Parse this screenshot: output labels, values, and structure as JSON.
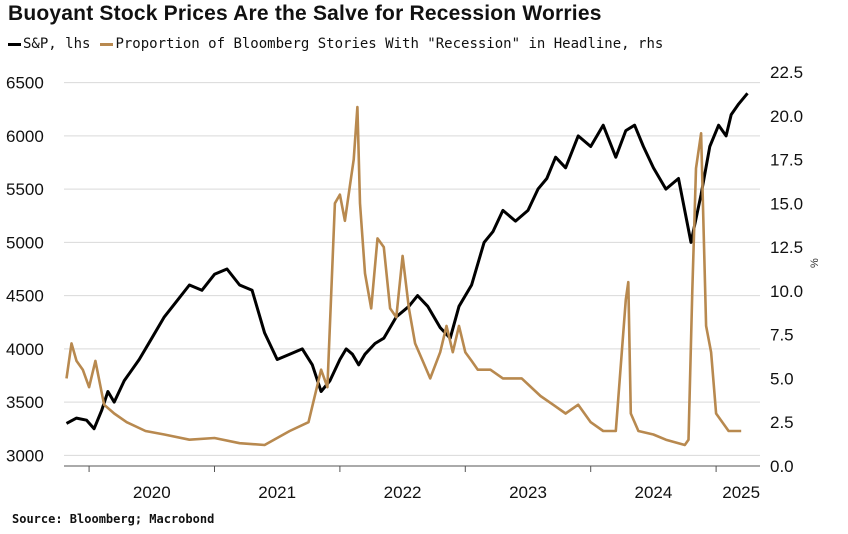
{
  "title": "Buoyant Stock Prices Are the Salve for Recession Worries",
  "source": "Source: Bloomberg; Macrobond",
  "colors": {
    "sp": "#000000",
    "recession": "#b8894f",
    "grid": "#d9d9d9"
  },
  "chart_data": {
    "type": "line",
    "x_tick_labels": [
      "2020",
      "2021",
      "2022",
      "2023",
      "2024",
      "2025"
    ],
    "x_tick_years": [
      2020,
      2021,
      2022,
      2023,
      2024,
      2025
    ],
    "xlim": [
      2019.8,
      2025.35
    ],
    "y_left": {
      "ylim": [
        2900,
        6600
      ],
      "ticks": [
        3000,
        3500,
        4000,
        4500,
        5000,
        5500,
        6000,
        6500
      ],
      "tick_labels": [
        "3000",
        "3500",
        "4000",
        "4500",
        "5000",
        "5500",
        "6000",
        "6500"
      ]
    },
    "y_right": {
      "ylim": [
        0,
        22.5
      ],
      "ticks": [
        0,
        2.5,
        5,
        7.5,
        10,
        12.5,
        15,
        17.5,
        20,
        22.5
      ],
      "tick_labels": [
        "0.0",
        "2.5",
        "5.0",
        "7.5",
        "10.0",
        "12.5",
        "15.0",
        "17.5",
        "20.0",
        "22.5"
      ]
    },
    "series": [
      {
        "name": "S&P, lhs",
        "axis": "left",
        "color": "#000000",
        "x": [
          2019.82,
          2019.9,
          2019.98,
          2020.04,
          2020.1,
          2020.15,
          2020.2,
          2020.28,
          2020.4,
          2020.5,
          2020.6,
          2020.7,
          2020.8,
          2020.9,
          2021.0,
          2021.1,
          2021.2,
          2021.3,
          2021.4,
          2021.5,
          2021.6,
          2021.7,
          2021.78,
          2021.85,
          2021.92,
          2022.0,
          2022.05,
          2022.1,
          2022.15,
          2022.2,
          2022.28,
          2022.35,
          2022.45,
          2022.55,
          2022.62,
          2022.7,
          2022.8,
          2022.88,
          2022.95,
          2023.05,
          2023.15,
          2023.22,
          2023.3,
          2023.4,
          2023.5,
          2023.58,
          2023.65,
          2023.72,
          2023.8,
          2023.9,
          2024.0,
          2024.1,
          2024.2,
          2024.28,
          2024.35,
          2024.42,
          2024.5,
          2024.6,
          2024.7,
          2024.8,
          2024.88,
          2024.95,
          2025.02,
          2025.08,
          2025.12,
          2025.18,
          2025.25
        ],
        "values": [
          3300,
          3350,
          3330,
          3250,
          3420,
          3600,
          3500,
          3700,
          3900,
          4100,
          4300,
          4450,
          4600,
          4550,
          4700,
          4750,
          4600,
          4550,
          4150,
          3900,
          3950,
          4000,
          3850,
          3600,
          3700,
          3900,
          4000,
          3950,
          3850,
          3950,
          4050,
          4100,
          4300,
          4400,
          4500,
          4400,
          4200,
          4100,
          4400,
          4600,
          5000,
          5100,
          5300,
          5200,
          5300,
          5500,
          5600,
          5800,
          5700,
          6000,
          5900,
          6100,
          5800,
          6050,
          6100,
          5900,
          5700,
          5500,
          5600,
          5000,
          5450,
          5900,
          6100,
          6000,
          6200,
          6300,
          6400
        ]
      },
      {
        "name": "Proportion of Bloomberg Stories With \"Recession\" in Headline, rhs",
        "axis": "right",
        "color": "#b8894f",
        "x": [
          2019.82,
          2019.86,
          2019.9,
          2019.95,
          2020.0,
          2020.05,
          2020.12,
          2020.2,
          2020.3,
          2020.45,
          2020.6,
          2020.8,
          2021.0,
          2021.2,
          2021.4,
          2021.6,
          2021.75,
          2021.85,
          2021.9,
          2021.96,
          2022.0,
          2022.04,
          2022.08,
          2022.11,
          2022.14,
          2022.16,
          2022.2,
          2022.25,
          2022.3,
          2022.35,
          2022.4,
          2022.45,
          2022.5,
          2022.55,
          2022.6,
          2022.66,
          2022.72,
          2022.8,
          2022.85,
          2022.9,
          2022.95,
          2023.0,
          2023.05,
          2023.1,
          2023.2,
          2023.3,
          2023.45,
          2023.6,
          2023.7,
          2023.8,
          2023.9,
          2024.0,
          2024.1,
          2024.2,
          2024.28,
          2024.3,
          2024.32,
          2024.38,
          2024.5,
          2024.6,
          2024.7,
          2024.75,
          2024.78,
          2024.81,
          2024.84,
          2024.88,
          2024.92,
          2024.96,
          2025.0,
          2025.1,
          2025.2
        ],
        "values": [
          5.0,
          7.0,
          6.0,
          5.5,
          4.5,
          6.0,
          3.5,
          3.0,
          2.5,
          2.0,
          1.8,
          1.5,
          1.6,
          1.3,
          1.2,
          2.0,
          2.5,
          5.5,
          4.5,
          15.0,
          15.5,
          14.0,
          16.0,
          17.5,
          20.5,
          15.0,
          11.0,
          9.0,
          13.0,
          12.5,
          9.0,
          8.5,
          12.0,
          9.0,
          7.0,
          6.0,
          5.0,
          6.5,
          8.0,
          6.5,
          8.0,
          6.5,
          6.0,
          5.5,
          5.5,
          5.0,
          5.0,
          4.0,
          3.5,
          3.0,
          3.5,
          2.5,
          2.0,
          2.0,
          9.5,
          10.5,
          3.0,
          2.0,
          1.8,
          1.5,
          1.3,
          1.2,
          1.5,
          10.0,
          17.0,
          19.0,
          8.0,
          6.5,
          3.0,
          2.0,
          2.0
        ]
      }
    ]
  },
  "legend": {
    "items": [
      {
        "label": "S&P, lhs",
        "color": "#000000"
      },
      {
        "label": "Proportion of Bloomberg Stories With \"Recession\" in Headline, rhs",
        "color": "#b8894f"
      }
    ]
  },
  "right_axis_mark": "%"
}
